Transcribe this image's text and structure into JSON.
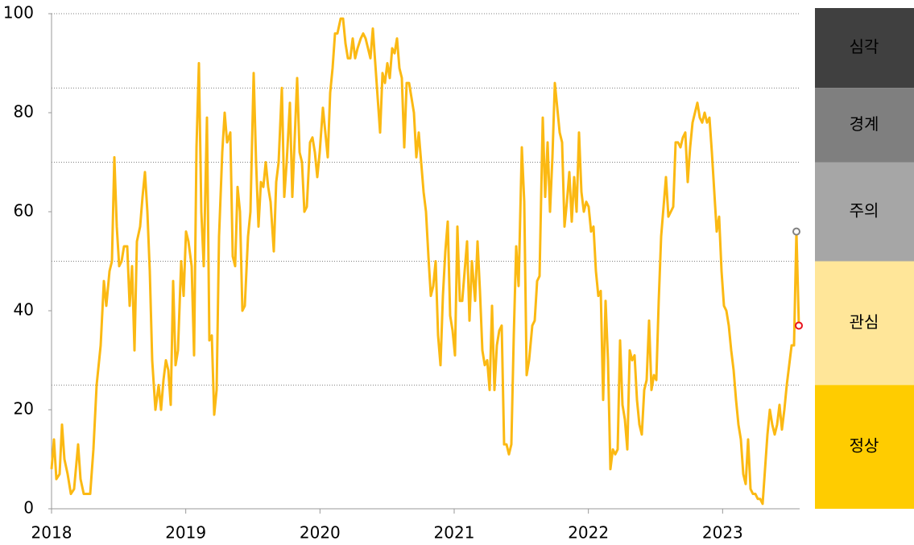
{
  "chart_data": {
    "type": "line",
    "x": [
      2018.0,
      2018.018,
      2018.036,
      2018.06,
      2018.078,
      2018.096,
      2018.12,
      2018.144,
      2018.168,
      2018.198,
      2018.216,
      2018.24,
      2018.264,
      2018.288,
      2018.312,
      2018.336,
      2018.366,
      2018.39,
      2018.408,
      2018.432,
      2018.45,
      2018.468,
      2018.486,
      2018.504,
      2018.522,
      2018.54,
      2018.564,
      2018.582,
      2018.6,
      2018.618,
      2018.636,
      2018.66,
      2018.678,
      2018.696,
      2018.714,
      2018.732,
      2018.75,
      2018.774,
      2018.798,
      2018.816,
      2018.834,
      2018.852,
      2018.87,
      2018.888,
      2018.906,
      2018.924,
      2018.942,
      2018.966,
      2018.984,
      2019.002,
      2019.02,
      2019.044,
      2019.062,
      2019.08,
      2019.098,
      2019.116,
      2019.134,
      2019.158,
      2019.176,
      2019.194,
      2019.212,
      2019.23,
      2019.248,
      2019.272,
      2019.29,
      2019.308,
      2019.332,
      2019.35,
      2019.368,
      2019.386,
      2019.404,
      2019.422,
      2019.44,
      2019.464,
      2019.482,
      2019.506,
      2019.524,
      2019.542,
      2019.56,
      2019.578,
      2019.596,
      2019.614,
      2019.632,
      2019.656,
      2019.674,
      2019.692,
      2019.716,
      2019.734,
      2019.752,
      2019.776,
      2019.794,
      2019.812,
      2019.83,
      2019.848,
      2019.866,
      2019.884,
      2019.902,
      2019.926,
      2019.944,
      2019.962,
      2019.98,
      2019.998,
      2020.022,
      2020.04,
      2020.058,
      2020.076,
      2020.094,
      2020.112,
      2020.13,
      2020.154,
      2020.172,
      2020.19,
      2020.208,
      2020.226,
      2020.244,
      2020.262,
      2020.28,
      2020.304,
      2020.322,
      2020.34,
      2020.358,
      2020.376,
      2020.394,
      2020.412,
      2020.43,
      2020.448,
      2020.466,
      2020.484,
      2020.502,
      2020.52,
      2020.538,
      2020.556,
      2020.574,
      2020.592,
      2020.61,
      2020.628,
      2020.646,
      2020.664,
      2020.682,
      2020.7,
      2020.718,
      2020.736,
      2020.754,
      2020.772,
      2020.79,
      2020.808,
      2020.826,
      2020.844,
      2020.862,
      2020.88,
      2020.898,
      2020.916,
      2020.934,
      2020.952,
      2020.97,
      2020.988,
      2021.006,
      2021.024,
      2021.042,
      2021.06,
      2021.078,
      2021.096,
      2021.114,
      2021.132,
      2021.156,
      2021.174,
      2021.192,
      2021.21,
      2021.228,
      2021.246,
      2021.264,
      2021.282,
      2021.3,
      2021.318,
      2021.336,
      2021.354,
      2021.372,
      2021.39,
      2021.408,
      2021.426,
      2021.444,
      2021.462,
      2021.48,
      2021.504,
      2021.522,
      2021.54,
      2021.558,
      2021.582,
      2021.6,
      2021.618,
      2021.636,
      2021.66,
      2021.678,
      2021.696,
      2021.714,
      2021.732,
      2021.75,
      2021.768,
      2021.786,
      2021.804,
      2021.822,
      2021.84,
      2021.858,
      2021.876,
      2021.894,
      2021.912,
      2021.93,
      2021.948,
      2021.966,
      2021.984,
      2022.002,
      2022.02,
      2022.038,
      2022.056,
      2022.074,
      2022.092,
      2022.11,
      2022.128,
      2022.146,
      2022.164,
      2022.182,
      2022.2,
      2022.218,
      2022.236,
      2022.254,
      2022.272,
      2022.29,
      2022.308,
      2022.326,
      2022.344,
      2022.362,
      2022.38,
      2022.398,
      2022.416,
      2022.434,
      2022.452,
      2022.47,
      2022.488,
      2022.506,
      2022.524,
      2022.542,
      2022.56,
      2022.578,
      2022.596,
      2022.614,
      2022.632,
      2022.65,
      2022.668,
      2022.686,
      2022.704,
      2022.722,
      2022.74,
      2022.758,
      2022.776,
      2022.794,
      2022.812,
      2022.83,
      2022.848,
      2022.866,
      2022.884,
      2022.902,
      2022.92,
      2022.938,
      2022.956,
      2022.974,
      2022.992,
      2023.01,
      2023.028,
      2023.046,
      2023.064,
      2023.082,
      2023.1,
      2023.118,
      2023.136,
      2023.154,
      2023.172,
      2023.19,
      2023.208,
      2023.226,
      2023.244,
      2023.262,
      2023.28,
      2023.298,
      2023.316,
      2023.334,
      2023.352,
      2023.37,
      2023.388,
      2023.406,
      2023.424,
      2023.442,
      2023.46,
      2023.478,
      2023.496,
      2023.514,
      2023.532,
      2023.55,
      2023.568
    ],
    "series": [
      {
        "color": "#fbb913",
        "values": [
          8,
          14,
          6,
          7,
          17,
          10,
          7,
          3,
          4,
          13,
          6,
          3,
          3,
          3,
          12,
          25,
          33,
          46,
          41,
          48,
          50,
          71,
          57,
          49,
          50,
          53,
          53,
          41,
          49,
          32,
          54,
          57,
          63,
          68,
          60,
          48,
          30,
          20,
          25,
          20,
          26,
          30,
          28,
          21,
          46,
          29,
          32,
          50,
          43,
          56,
          54,
          49,
          31,
          73,
          90,
          60,
          49,
          79,
          34,
          35,
          19,
          24,
          55,
          72,
          80,
          74,
          76,
          51,
          49,
          65,
          60,
          40,
          41,
          55,
          60,
          88,
          70,
          57,
          66,
          65,
          70,
          65,
          62,
          52,
          66,
          70,
          85,
          63,
          70,
          82,
          63,
          75,
          87,
          72,
          70,
          60,
          61,
          74,
          75,
          72,
          67,
          72,
          81,
          76,
          71,
          84,
          89,
          96,
          96,
          99,
          99,
          94,
          91,
          91,
          95,
          91,
          93,
          95,
          96,
          95,
          93,
          91,
          97,
          90,
          83,
          76,
          88,
          86,
          90,
          87,
          93,
          92,
          95,
          89,
          87,
          73,
          86,
          86,
          83,
          80,
          71,
          76,
          70,
          64,
          60,
          51,
          43,
          45,
          50,
          35,
          29,
          43,
          52,
          58,
          39,
          36,
          31,
          57,
          42,
          42,
          48,
          54,
          38,
          50,
          42,
          54,
          44,
          32,
          29,
          30,
          24,
          41,
          24,
          33,
          36,
          37,
          13,
          13,
          11,
          13,
          35,
          53,
          45,
          73,
          62,
          27,
          30,
          37,
          38,
          46,
          47,
          79,
          63,
          74,
          60,
          71,
          86,
          81,
          76,
          74,
          57,
          62,
          68,
          58,
          67,
          60,
          76,
          64,
          60,
          62,
          61,
          56,
          57,
          48,
          43,
          44,
          22,
          42,
          30,
          8,
          12,
          11,
          12,
          34,
          21,
          18,
          12,
          32,
          30,
          31,
          22,
          17,
          15,
          24,
          26,
          38,
          24,
          27,
          26,
          42,
          55,
          61,
          67,
          59,
          60,
          61,
          74,
          74,
          73,
          75,
          76,
          66,
          73,
          78,
          80,
          82,
          79,
          78,
          80,
          78,
          79,
          72,
          64,
          56,
          59,
          48,
          41,
          40,
          37,
          32,
          28,
          22,
          17,
          14,
          7,
          5,
          14,
          4,
          3,
          3,
          2,
          2,
          1,
          8,
          15,
          20,
          17,
          15,
          17,
          21,
          16,
          20,
          25,
          29,
          33,
          33,
          56,
          37
        ]
      }
    ],
    "end_marker_colors": [
      "#808080",
      "#e8141e"
    ],
    "xlim": [
      2018,
      2023.574
    ],
    "xticks": [
      2018,
      2019,
      2020,
      2021,
      2022,
      2023
    ],
    "ylim": [
      0,
      100
    ],
    "yticks": [
      0,
      20,
      40,
      60,
      80,
      100
    ],
    "levels": [
      {
        "name": "심각",
        "range": [
          85,
          100
        ],
        "color": "#404040",
        "text_color": "#ffffff"
      },
      {
        "name": "경계",
        "range": [
          70,
          85
        ],
        "color": "#7f7f7f",
        "text_color": "#ffffff"
      },
      {
        "name": "주의",
        "range": [
          50,
          70
        ],
        "color": "#a6a6a6",
        "text_color": "#000000"
      },
      {
        "name": "관심",
        "range": [
          25,
          50
        ],
        "color": "#ffe699",
        "text_color": "#000000"
      },
      {
        "name": "정상",
        "range": [
          0,
          25
        ],
        "color": "#ffcc00",
        "text_color": "#000000"
      }
    ]
  }
}
